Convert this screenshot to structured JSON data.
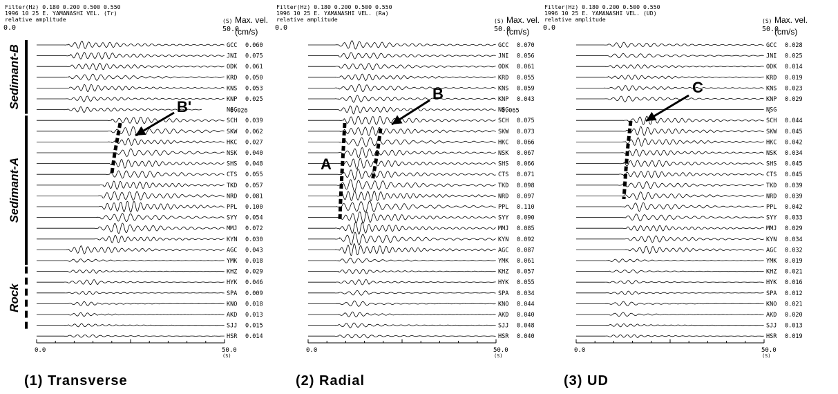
{
  "colors": {
    "ink": "#000000",
    "paper": "#ffffff"
  },
  "chart_data": {
    "type": "waveform-section",
    "event": "1996 10 25 E. YAMANASHI",
    "x_axis": {
      "range": [
        0.0,
        50.0
      ],
      "start_label": "0.0",
      "end_label": "50.0",
      "unit_label": "(S)"
    },
    "max_vel_header": "Max. vel.",
    "max_vel_unit": "(cm/s)",
    "zone_labels": [
      {
        "text": "Sedimant-B",
        "rows": [
          0,
          6
        ],
        "style": "solid"
      },
      {
        "text": "Sedimant-A",
        "rows": [
          7,
          20
        ],
        "style": "solid"
      },
      {
        "text": "Rock",
        "rows": [
          21,
          26
        ],
        "style": "dashed"
      }
    ],
    "stations": [
      "GCC",
      "JNI",
      "ODK",
      "KRD",
      "KNS",
      "KNP",
      "NSG",
      "SCH",
      "SKW",
      "HKC",
      "NSK",
      "SHS",
      "CTS",
      "TKD",
      "NRD",
      "PPL",
      "SYY",
      "MMJ",
      "KYN",
      "AGC",
      "YMK",
      "KHZ",
      "HYK",
      "SPA",
      "KNO",
      "AKD",
      "SJJ",
      "HSR"
    ],
    "panels": [
      {
        "caption": "(1) Transverse",
        "header_line1": "Filter(Hz)   0.180  0.200  0.500  0.550",
        "header_line2": "1996 10 25 E. YAMANASHI  VEL. (Tr)",
        "header_line3": "relative amplitude",
        "max_vel": [
          "0.060",
          "0.075",
          "0.061",
          "0.050",
          "0.053",
          "0.025",
          "0.026",
          "0.039",
          "0.062",
          "0.027",
          "0.040",
          "0.048",
          "0.055",
          "0.057",
          "0.081",
          "0.100",
          "0.054",
          "0.072",
          "0.030",
          "0.043",
          "0.018",
          "0.029",
          "0.046",
          "0.009",
          "0.018",
          "0.013",
          "0.015",
          "0.014"
        ],
        "annotations": [
          {
            "label": "B'"
          }
        ]
      },
      {
        "caption": "(2) Radial",
        "header_line1": "Filter(Hz)   0.180  0.200  0.500  0.550",
        "header_line2": "1996 10 25 E. YAMANASHI  VEL. (Ra)",
        "header_line3": "relative amplitude",
        "max_vel": [
          "0.070",
          "0.056",
          "0.061",
          "0.055",
          "0.059",
          "0.043",
          "0.065",
          "0.075",
          "0.073",
          "0.066",
          "0.067",
          "0.066",
          "0.071",
          "0.098",
          "0.097",
          "0.110",
          "0.090",
          "0.085",
          "0.092",
          "0.087",
          "0.061",
          "0.057",
          "0.055",
          "0.034",
          "0.044",
          "0.040",
          "0.048",
          "0.040"
        ],
        "annotations": [
          {
            "label": "A"
          },
          {
            "label": "B"
          }
        ]
      },
      {
        "caption": "(3) UD",
        "header_line1": "Filter(Hz)   0.180  0.200  0.500  0.550",
        "header_line2": "1996 10 25 E. YAMANASHI  VEL. (UD)",
        "header_line3": "relative amplitude",
        "max_vel": [
          "0.028",
          "0.025",
          "0.014",
          "0.019",
          "0.023",
          "0.029",
          "",
          "0.044",
          "0.045",
          "0.042",
          "0.034",
          "0.045",
          "0.045",
          "0.039",
          "0.039",
          "0.042",
          "0.033",
          "0.029",
          "0.034",
          "0.032",
          "0.019",
          "0.021",
          "0.016",
          "0.012",
          "0.021",
          "0.020",
          "0.013",
          "0.019"
        ],
        "annotations": [
          {
            "label": "C"
          }
        ]
      }
    ]
  }
}
